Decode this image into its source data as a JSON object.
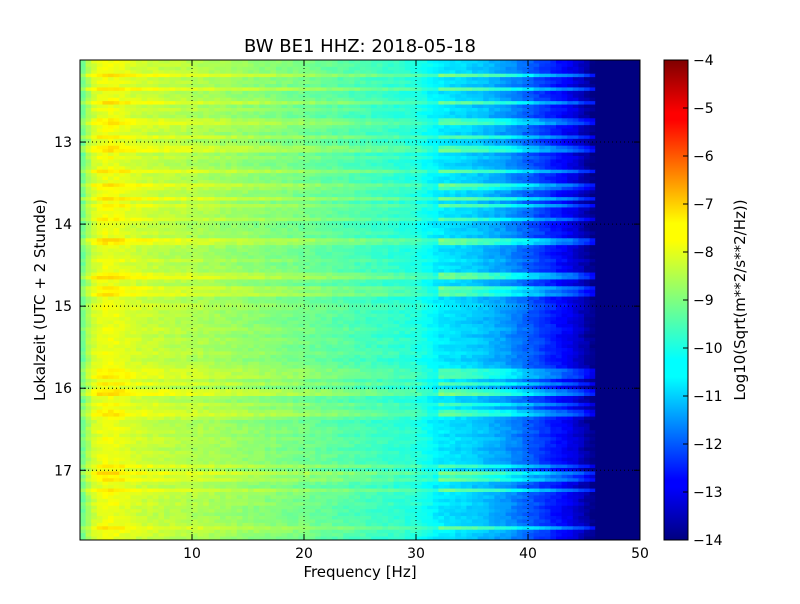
{
  "chart_data": {
    "type": "heatmap",
    "title": "BW BE1 HHZ: 2018-05-18",
    "xlabel": "Frequency [Hz]",
    "ylabel": "Lokalzeit (UTC + 2 Stunde)",
    "xlim": [
      0,
      50
    ],
    "ylim": [
      17.85,
      12.0
    ],
    "x_ticks": [
      10,
      20,
      30,
      40,
      50
    ],
    "x_tick_labels": [
      "10",
      "20",
      "30",
      "40",
      "50"
    ],
    "y_ticks": [
      13,
      14,
      15,
      16,
      17
    ],
    "y_tick_labels": [
      "13",
      "14",
      "15",
      "16",
      "17"
    ],
    "grid": true,
    "colormap": "jet",
    "colorbar": {
      "label": "Log10(Sqrt(m**2/s**2/Hz))",
      "range": [
        -14,
        -4
      ],
      "ticks": [
        -4,
        -5,
        -6,
        -7,
        -8,
        -9,
        -10,
        -11,
        -12,
        -13,
        -14
      ],
      "tick_labels": [
        "−4",
        "−5",
        "−6",
        "−7",
        "−8",
        "−9",
        "−10",
        "−11",
        "−12",
        "−13",
        "−14"
      ]
    },
    "spectral_profile": {
      "frequency_hz": [
        0,
        1,
        2,
        3,
        5,
        8,
        10,
        15,
        20,
        25,
        30,
        32,
        35,
        38,
        40,
        42,
        44,
        46,
        50
      ],
      "log10_amplitude": [
        -9.4,
        -8.3,
        -7.9,
        -7.9,
        -8.2,
        -8.4,
        -8.5,
        -8.8,
        -9.1,
        -9.5,
        -9.9,
        -10.4,
        -10.7,
        -11.2,
        -11.8,
        -12.4,
        -13.0,
        -14.0,
        -14.0
      ]
    },
    "noisy_time_bands_hours": [
      12.18,
      12.35,
      12.52,
      12.75,
      12.95,
      13.05,
      13.12,
      13.35,
      13.55,
      13.7,
      13.78,
      13.95,
      14.2,
      14.25,
      14.6,
      14.65,
      14.8,
      14.85,
      15.8,
      15.85,
      15.95,
      16.05,
      16.2,
      16.3,
      16.95,
      17.05,
      17.1,
      17.25,
      17.7
    ]
  }
}
